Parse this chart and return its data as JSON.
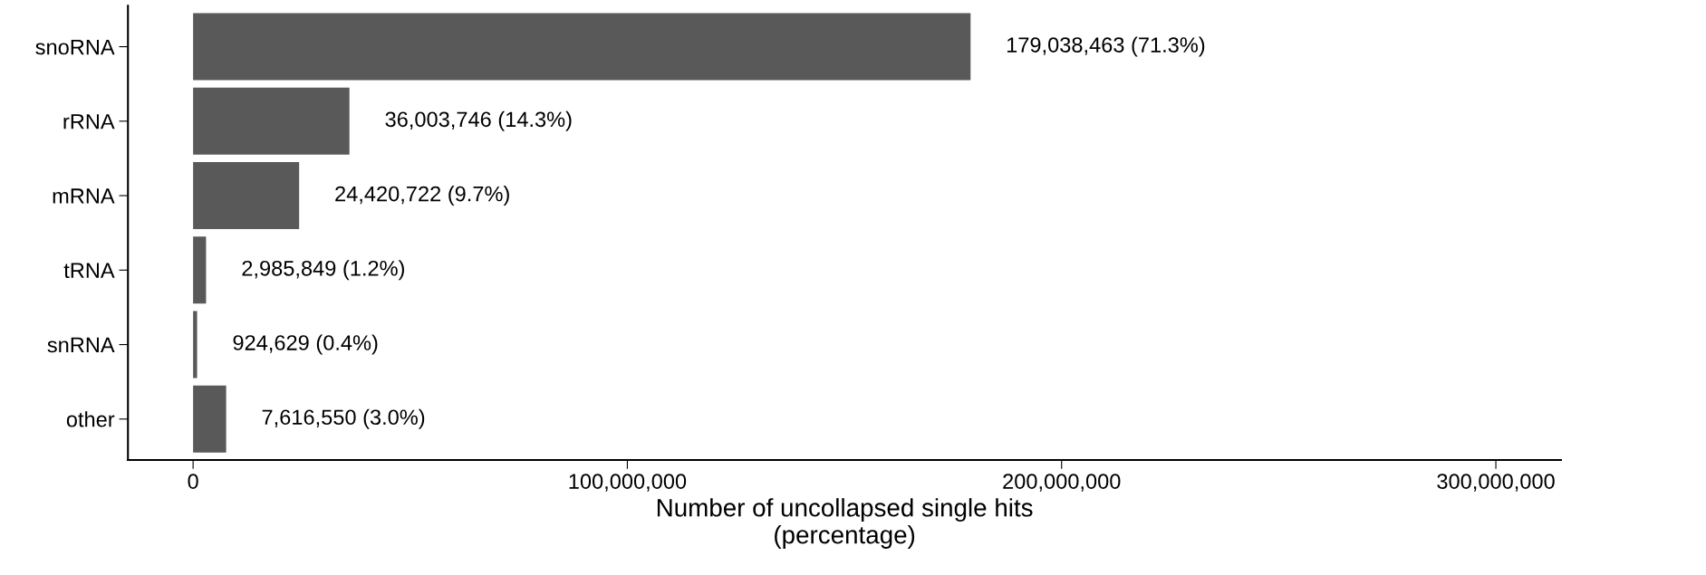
{
  "chart_data": {
    "type": "bar",
    "orientation": "horizontal",
    "xlabel": "Number of uncollapsed single hits\n(percentage)",
    "categories": [
      "snoRNA",
      "rRNA",
      "mRNA",
      "tRNA",
      "snRNA",
      "other"
    ],
    "values": [
      179038463,
      36003746,
      24420722,
      2985849,
      924629,
      7616550
    ],
    "value_labels": [
      "179,038,463 (71.3%)",
      "36,003,746 (14.3%)",
      "24,420,722 (9.7%)",
      "2,985,849 (1.2%)",
      "924,629 (0.4%)",
      "7,616,550 (3.0%)"
    ],
    "color": "#595959",
    "xlim": [
      -15000000,
      315000000
    ],
    "xticks": [
      {
        "value": 0,
        "label": "0"
      },
      {
        "value": 100000000,
        "label": "100,000,000"
      },
      {
        "value": 200000000,
        "label": "200,000,000"
      },
      {
        "value": 300000000,
        "label": "300,000,000"
      }
    ],
    "grid": false
  }
}
